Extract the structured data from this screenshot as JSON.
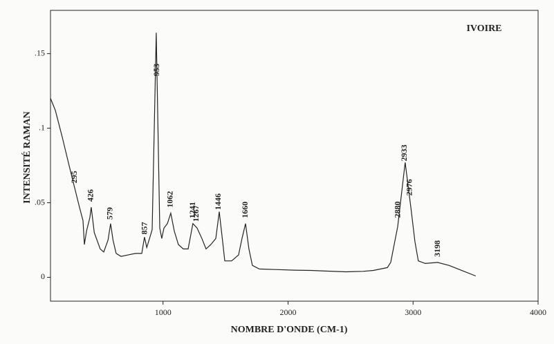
{
  "chart_data": {
    "type": "line",
    "annotation": "IVOIRE",
    "xlabel": "NOMBRE D'ONDE (CM-1)",
    "ylabel": "INTENSITÉ RAMAN",
    "xlim": [
      100,
      4000
    ],
    "xticks": [
      1000,
      2000,
      3000,
      4000
    ],
    "ylim": [
      -0.016,
      0.179
    ],
    "yticks": [
      0,
      {
        "value": 0.05,
        "label": ".05"
      },
      {
        "value": 0.1,
        "label": ".1"
      },
      {
        "value": 0.15,
        "label": ".15"
      }
    ],
    "color": "#222222",
    "x": [
      100,
      139,
      194,
      249,
      305,
      332,
      360,
      371,
      388,
      415,
      426,
      450,
      498,
      526,
      560,
      581,
      600,
      625,
      664,
      720,
      780,
      830,
      852,
      870,
      885,
      913,
      946,
      974,
      990,
      1007,
      1035,
      1062,
      1090,
      1123,
      1162,
      1201,
      1239,
      1273,
      1311,
      1344,
      1383,
      1422,
      1450,
      1477,
      1494,
      1549,
      1604,
      1632,
      1660,
      1687,
      1715,
      1770,
      1900,
      2050,
      2185,
      2300,
      2462,
      2600,
      2683,
      2794,
      2821,
      2877,
      2937,
      2982,
      3015,
      3042,
      3098,
      3197,
      3291,
      3402,
      3501
    ],
    "values": [
      0.12,
      0.112,
      0.094,
      0.075,
      0.056,
      0.047,
      0.038,
      0.022,
      0.031,
      0.04,
      0.047,
      0.03,
      0.019,
      0.017,
      0.025,
      0.036,
      0.025,
      0.016,
      0.014,
      0.015,
      0.016,
      0.016,
      0.027,
      0.02,
      0.024,
      0.032,
      0.164,
      0.033,
      0.026,
      0.033,
      0.036,
      0.043,
      0.031,
      0.022,
      0.019,
      0.019,
      0.036,
      0.033,
      0.026,
      0.019,
      0.022,
      0.026,
      0.044,
      0.024,
      0.011,
      0.011,
      0.015,
      0.026,
      0.036,
      0.019,
      0.008,
      0.0056,
      0.0052,
      0.0048,
      0.0046,
      0.0042,
      0.0037,
      0.004,
      0.0046,
      0.0065,
      0.01,
      0.034,
      0.077,
      0.047,
      0.024,
      0.011,
      0.0093,
      0.01,
      0.0079,
      0.0042,
      0.0009
    ],
    "peaks": [
      295,
      426,
      579,
      857,
      953,
      1062,
      1241,
      1267,
      1446,
      1660,
      2880,
      2933,
      2976,
      3198
    ]
  }
}
